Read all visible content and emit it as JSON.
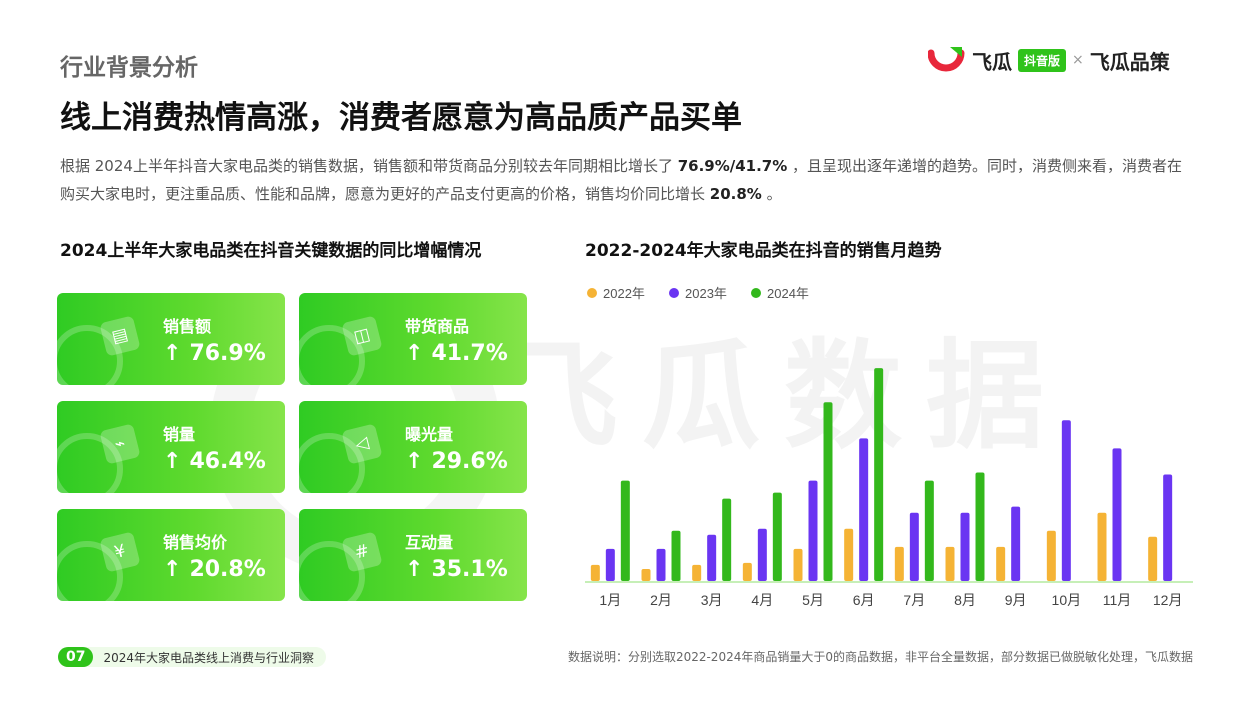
{
  "header": {
    "section_title": "行业背景分析",
    "headline": "线上消费热情高涨，消费者愿意为高品质产品买单"
  },
  "logo": {
    "brand_name": "飞瓜",
    "badge": "抖音版",
    "separator": "×",
    "partner": "飞瓜品策",
    "colors": {
      "green": "#2fc31a",
      "red": "#e8273b"
    }
  },
  "watermark": "飞瓜数据",
  "intro": {
    "part1": "根据  2024上半年抖音大家电品类的销售数据，销售额和带货商品分别较去年同期相比增长了  ",
    "highlight1": "76.9%/41.7%",
    "part2": "  ，且呈现出逐年递增的趋势。同时，消费侧来看，消费者在购买大家电时，更注重品质、性能和品牌，愿意为更好的产品支付更高的价格，销售均价同比增长 ",
    "highlight2": "20.8%",
    "part3": " 。"
  },
  "left_panel": {
    "title": "2024上半年大家电品类在抖音关键数据的同比增幅情况",
    "arrow": "↑",
    "cards": [
      {
        "label": "销售额",
        "value": "76.9%",
        "icon": "receipt-icon"
      },
      {
        "label": "带货商品",
        "value": "41.7%",
        "icon": "shopping-bag-icon"
      },
      {
        "label": "销量",
        "value": "46.4%",
        "icon": "trend-board-icon"
      },
      {
        "label": "曝光量",
        "value": "29.6%",
        "icon": "megaphone-icon"
      },
      {
        "label": "销售均价",
        "value": "20.8%",
        "icon": "yen-coin-icon"
      },
      {
        "label": "互动量",
        "value": "35.1%",
        "icon": "chat-hash-icon"
      }
    ]
  },
  "chart_data": {
    "type": "bar",
    "title": "2022-2024年大家电品类在抖音的销售月趋势",
    "categories": [
      "1月",
      "2月",
      "3月",
      "4月",
      "5月",
      "6月",
      "7月",
      "8月",
      "9月",
      "10月",
      "11月",
      "12月"
    ],
    "series": [
      {
        "name": "2022年",
        "color": "#f5b335",
        "values": [
          8,
          6,
          8,
          9,
          16,
          26,
          17,
          17,
          17,
          25,
          34,
          22
        ]
      },
      {
        "name": "2023年",
        "color": "#6a35f2",
        "values": [
          16,
          16,
          23,
          26,
          50,
          71,
          34,
          34,
          37,
          80,
          66,
          53
        ]
      },
      {
        "name": "2024年",
        "color": "#33b81c",
        "values": [
          50,
          25,
          41,
          44,
          89,
          106,
          50,
          54,
          null,
          null,
          null,
          null
        ]
      }
    ],
    "legend_position": "top-left",
    "ylim": [
      0,
      115
    ],
    "grid": false,
    "axis_color": "#c6efb7"
  },
  "footer": {
    "page_number": "07",
    "report_title": "2024年大家电品类线上消费与行业洞察",
    "note": "数据说明：分别选取2022-2024年商品销量大于0的商品数据，非平台全量数据，部分数据已做脱敏化处理，飞瓜数据"
  }
}
